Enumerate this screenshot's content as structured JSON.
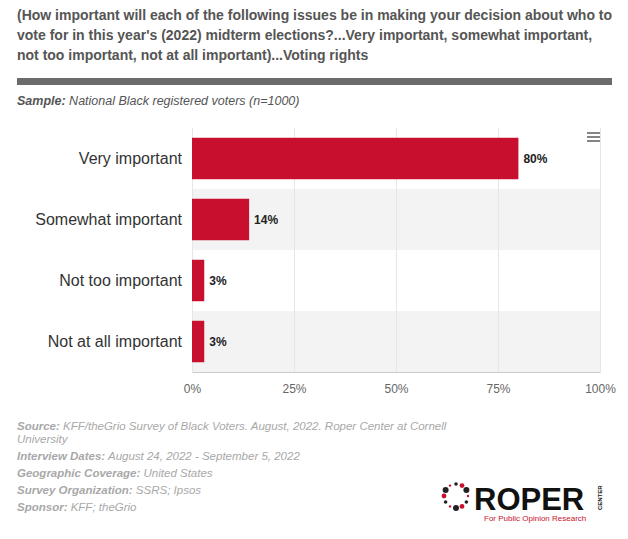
{
  "chart_data": {
    "type": "bar",
    "orientation": "horizontal",
    "title": "(How important will each of the following issues be in making your decision about who to vote for in this year's (2022) midterm elections?...Very important, somewhat important, not too important, not at all important)...Voting rights",
    "subtitle": "Sample: National Black registered voters (n=1000)",
    "categories": [
      "Very important",
      "Somewhat important",
      "Not too important",
      "Not at all important"
    ],
    "values": [
      80,
      14,
      3,
      3
    ],
    "value_labels": [
      "80%",
      "14%",
      "3%",
      "3%"
    ],
    "data_labels": true,
    "color": "#c8102e",
    "xlim": [
      0,
      100
    ],
    "xticks": [
      {
        "value": 0,
        "label": "0%"
      },
      {
        "value": 25,
        "label": "25%"
      },
      {
        "value": 50,
        "label": "50%"
      },
      {
        "value": 75,
        "label": "75%"
      },
      {
        "value": 100,
        "label": "100%"
      }
    ],
    "grid": true,
    "annotations": {
      "footer": [
        "Source: KFF/theGrio Survey of Black Voters. August, 2022. Roper Center at Cornell University",
        "Interview Dates: August 24, 2022 - September 5, 2022",
        "Geographic Coverage: United States",
        "Survey Organization: SSRS; Ipsos",
        "Sponsor: KFF; theGrio"
      ],
      "logo": [
        "ROPER",
        "CENTER",
        "For Public Opinion Research"
      ]
    }
  }
}
